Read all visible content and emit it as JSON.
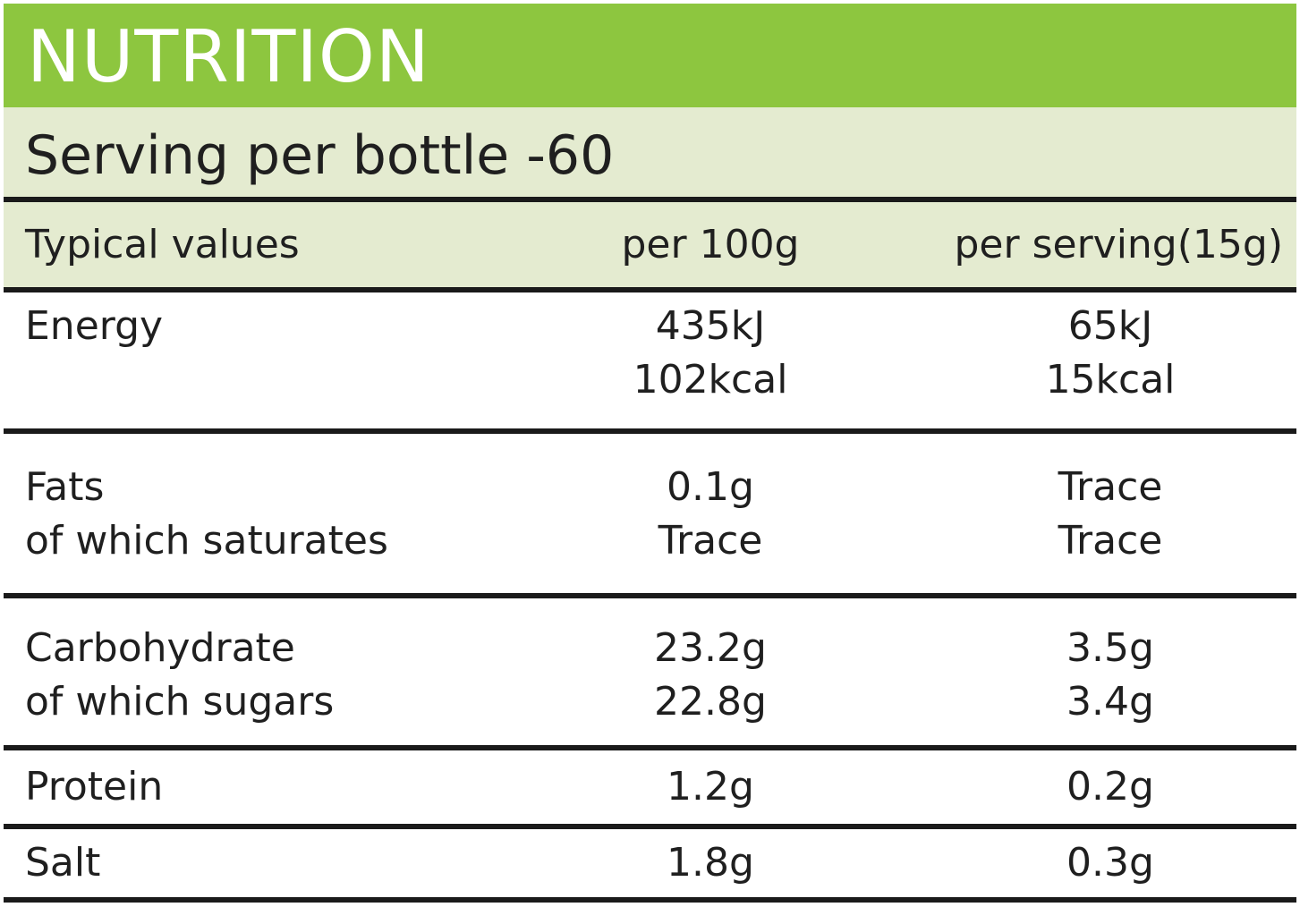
{
  "title": "NUTRITION",
  "serving": "Serving per bottle -60",
  "header": {
    "label": "Typical values",
    "per_100g": "per 100g",
    "per_serving": "per serving(15g)"
  },
  "rows": [
    {
      "label": [
        "Energy"
      ],
      "per_100g": [
        "435kJ",
        "102kcal"
      ],
      "per_serving": [
        "65kJ",
        "15kcal"
      ]
    },
    {
      "label": [
        "Fats",
        "of which saturates"
      ],
      "per_100g": [
        "0.1g",
        "Trace"
      ],
      "per_serving": [
        "Trace",
        "Trace"
      ]
    },
    {
      "label": [
        "Carbohydrate",
        "of which sugars"
      ],
      "per_100g": [
        "23.2g",
        "22.8g"
      ],
      "per_serving": [
        "3.5g",
        "3.4g"
      ]
    },
    {
      "label": [
        "Protein"
      ],
      "per_100g": [
        "1.2g"
      ],
      "per_serving": [
        "0.2g"
      ]
    },
    {
      "label": [
        "Salt"
      ],
      "per_100g": [
        "1.8g"
      ],
      "per_serving": [
        "0.3g"
      ]
    }
  ]
}
